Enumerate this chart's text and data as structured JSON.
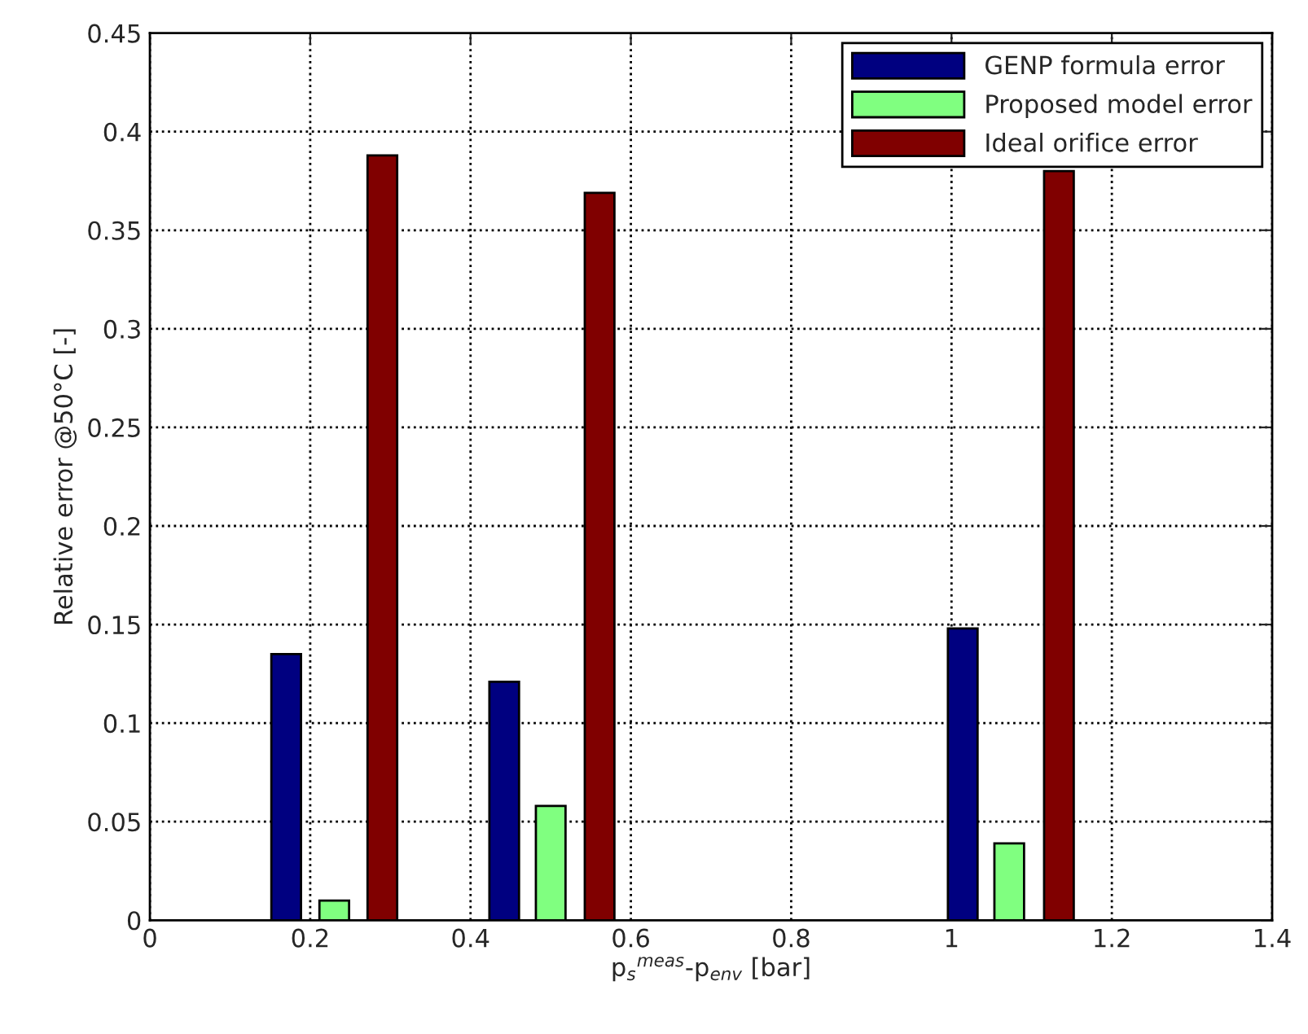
{
  "chart_data": {
    "type": "bar",
    "xlabel": "p$_{s}$$^{meas}$-p$_{env}$ [bar]",
    "ylabel": "Relative error @50°C [-]",
    "series": [
      {
        "name": "GENP formula error",
        "color": "#000080",
        "x": [
          0.17,
          0.442,
          1.014
        ],
        "values": [
          0.135,
          0.121,
          0.148
        ]
      },
      {
        "name": "Proposed model error",
        "color": "#80ff80",
        "x": [
          0.23,
          0.5,
          1.072
        ],
        "values": [
          0.01,
          0.058,
          0.039
        ]
      },
      {
        "name": "Ideal orifice error",
        "color": "#800000",
        "x": [
          0.29,
          0.561,
          1.134
        ],
        "values": [
          0.388,
          0.369,
          0.38
        ]
      }
    ],
    "xlim": [
      0,
      1.4
    ],
    "xticks": [
      0,
      0.2,
      0.4,
      0.6,
      0.8,
      1,
      1.2,
      1.4
    ],
    "ylim": [
      0,
      0.45
    ],
    "yticks": [
      0,
      0.05,
      0.1,
      0.15,
      0.2,
      0.25,
      0.3,
      0.35,
      0.4,
      0.45
    ],
    "grid": true,
    "legend": "top right"
  }
}
